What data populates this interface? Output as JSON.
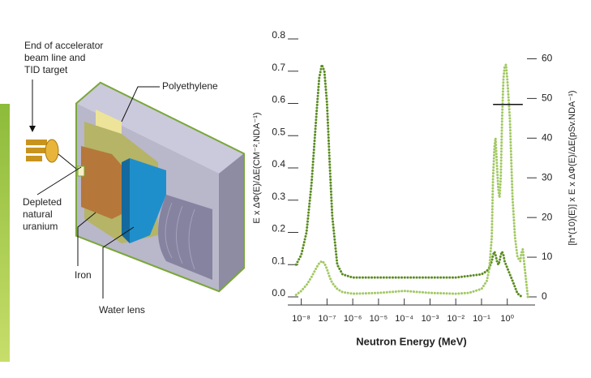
{
  "diagram": {
    "labels": {
      "target": [
        "End of accelerator",
        "beam line and",
        "TID target"
      ],
      "polyethylene": [
        "Polyethylene"
      ],
      "uranium": [
        "Depleted",
        "natural",
        "uranium"
      ],
      "iron": [
        "Iron"
      ],
      "water": [
        "Water lens"
      ]
    }
  },
  "chart_data": {
    "type": "line",
    "xlabel": "Neutron Energy (MeV)",
    "ylabel": "E x ΔΦ(E)/ΔE(CM⁻².NDA⁻¹)",
    "y2label": "[h*(10)(E)] x E x ΔΦ(E)/ΔE(pSv.NDA⁻¹)",
    "xscale": "log",
    "xlim": [
      3e-09,
      12
    ],
    "xticks": [
      {
        "value": 1e-08,
        "label": "10⁻⁸"
      },
      {
        "value": 1e-07,
        "label": "10⁻⁷"
      },
      {
        "value": 1e-06,
        "label": "10⁻⁶"
      },
      {
        "value": 1e-05,
        "label": "10⁻⁵"
      },
      {
        "value": 0.0001,
        "label": "10⁻⁴"
      },
      {
        "value": 0.001,
        "label": "10⁻³"
      },
      {
        "value": 0.01,
        "label": "10⁻²"
      },
      {
        "value": 0.1,
        "label": "10⁻¹"
      },
      {
        "value": 1,
        "label": "10⁰"
      }
    ],
    "ylim": [
      0,
      0.8
    ],
    "yticks": [
      {
        "value": 0,
        "label": "0.0"
      },
      0.1,
      0.2,
      0.3,
      0.4,
      0.5,
      0.6,
      0.7,
      0.8
    ],
    "y2lim": [
      0,
      65
    ],
    "y2ticks": [
      0,
      10,
      20,
      30,
      40,
      50,
      60
    ],
    "hline": {
      "axis": "y2",
      "value": 48.5,
      "x": [
        0.28,
        4
      ]
    },
    "x": [
      6.3e-09,
      1e-08,
      1.6e-08,
      2.5e-08,
      4e-08,
      5e-08,
      6.3e-08,
      7.9e-08,
      1e-07,
      1.26e-07,
      1.6e-07,
      2.5e-07,
      4e-07,
      1e-06,
      1e-05,
      0.0001,
      0.001,
      0.01,
      0.032,
      0.1,
      0.16,
      0.2,
      0.25,
      0.28,
      0.32,
      0.35,
      0.4,
      0.45,
      0.5,
      0.56,
      0.63,
      0.71,
      0.79,
      0.89,
      1,
      1.26,
      1.6,
      2,
      2.5,
      3.2,
      3.5,
      4,
      5,
      6.3
    ],
    "series": [
      {
        "color": "#5b8c22",
        "values": [
          0.1,
          0.13,
          0.2,
          0.35,
          0.58,
          0.68,
          0.72,
          0.7,
          0.6,
          0.42,
          0.25,
          0.1,
          0.07,
          0.06,
          0.06,
          0.06,
          0.06,
          0.06,
          0.065,
          0.07,
          0.08,
          0.09,
          0.11,
          0.13,
          0.14,
          0.13,
          0.11,
          0.1,
          0.11,
          0.13,
          0.14,
          0.13,
          0.11,
          0.1,
          0.09,
          0.07,
          0.05,
          0.03,
          0.01,
          0.005,
          0,
          null,
          null,
          null
        ]
      },
      {
        "color": "#a2c963",
        "axis": "y2",
        "values": [
          0.5,
          1.5,
          3,
          5,
          7.5,
          8.5,
          9,
          8.5,
          7,
          5,
          3.5,
          2,
          1.2,
          0.8,
          1,
          1.5,
          1,
          0.8,
          1,
          2,
          4,
          7,
          15,
          30,
          38,
          40,
          33,
          27,
          25,
          30,
          45,
          55,
          58,
          58.5,
          55,
          45,
          25,
          15,
          10,
          9,
          11,
          12,
          6,
          0
        ]
      }
    ]
  }
}
